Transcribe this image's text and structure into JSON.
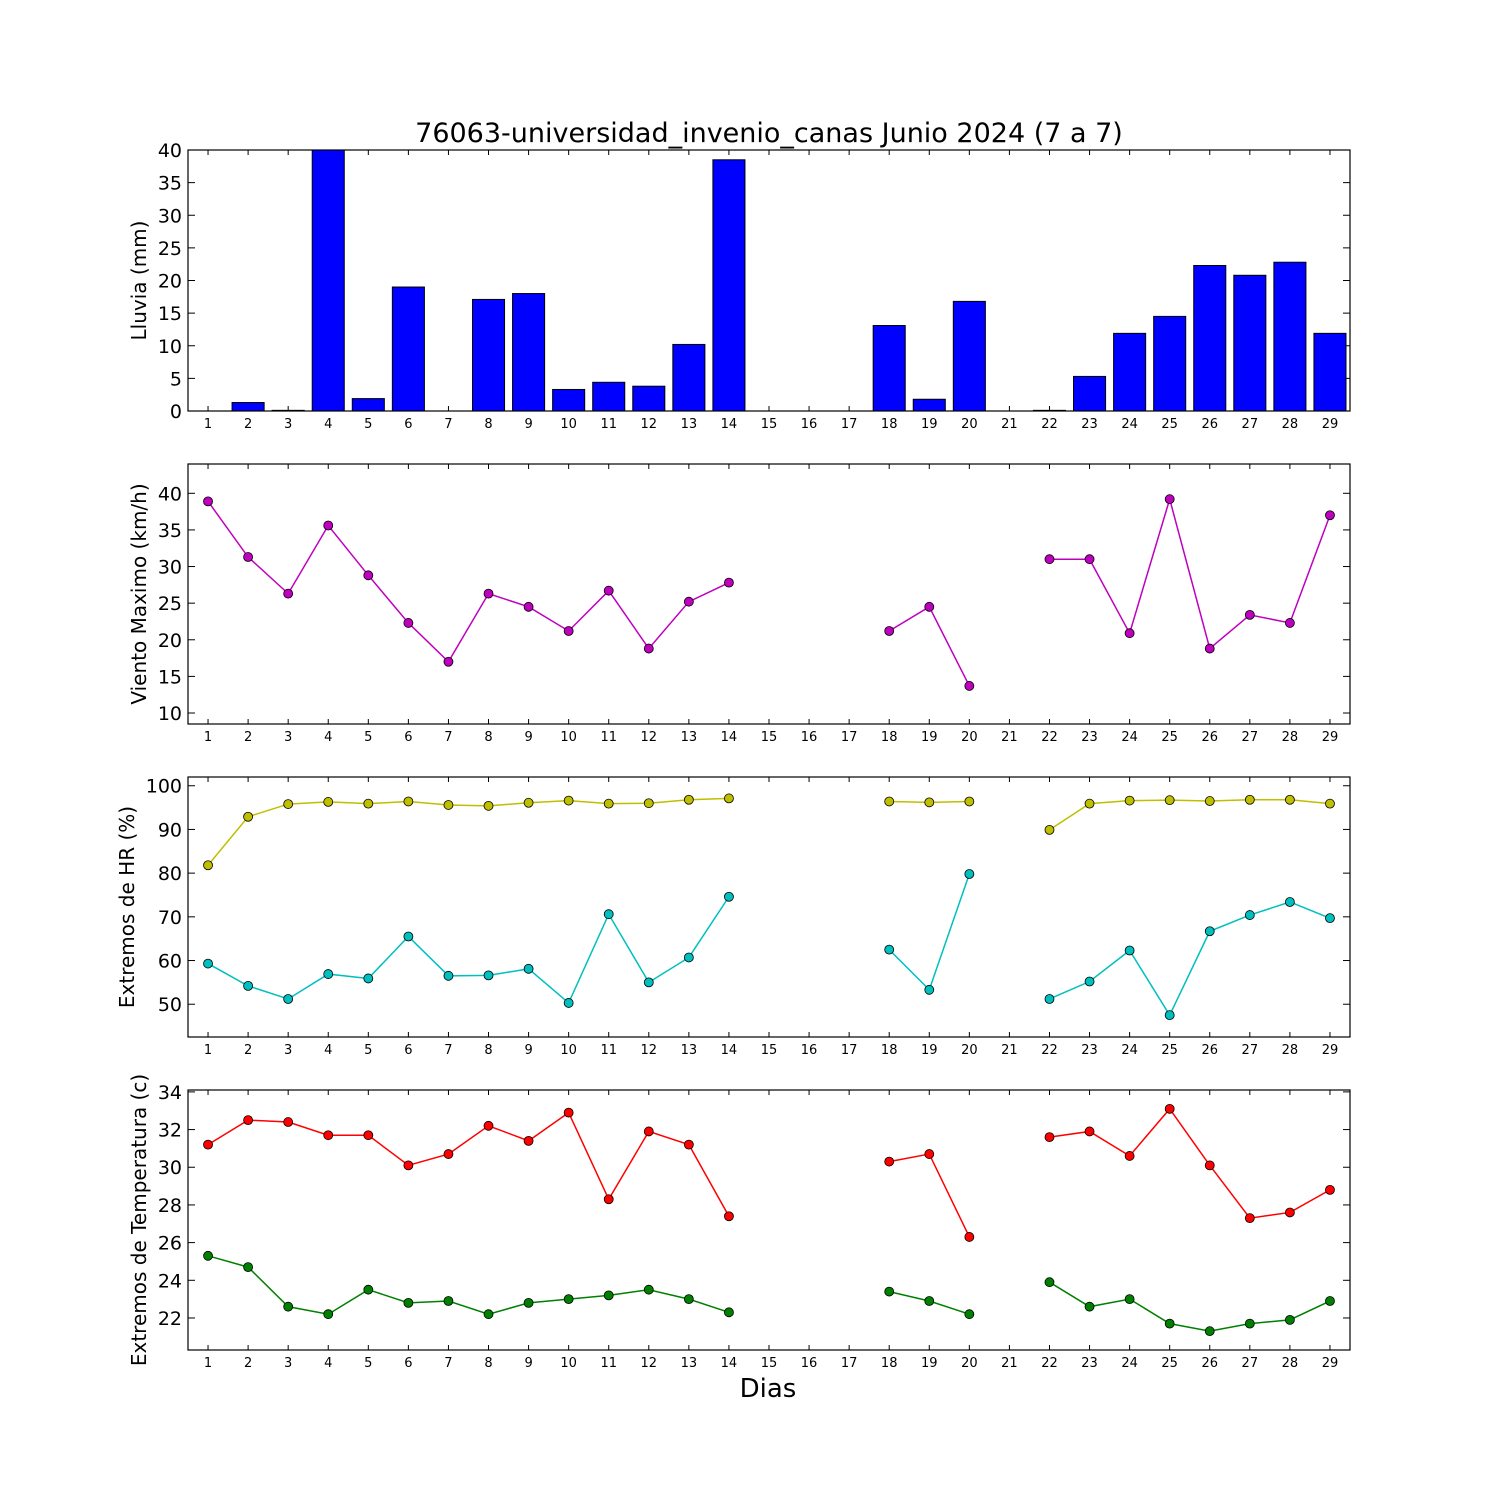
{
  "figure_title": "76063-universidad_invenio_canas Junio 2024  (7 a 7)",
  "xlabel": "Dias",
  "colors": {
    "rain_bar": "#0000ff",
    "wind": "#bf00bf",
    "hr_max": "#bfbf00",
    "hr_min": "#00bfbf",
    "temp_max": "#ff0000",
    "temp_min": "#008000"
  },
  "chart_data": [
    {
      "type": "bar",
      "ylabel": "Lluvia (mm)",
      "xlabel": "",
      "ylim": [
        0,
        40
      ],
      "yticks": [
        0,
        5,
        10,
        15,
        20,
        25,
        30,
        35,
        40
      ],
      "xlim": [
        0.5,
        29.5
      ],
      "x": [
        1,
        2,
        3,
        4,
        5,
        6,
        7,
        8,
        9,
        10,
        11,
        12,
        13,
        14,
        15,
        16,
        17,
        18,
        19,
        20,
        21,
        22,
        23,
        24,
        25,
        26,
        27,
        28,
        29
      ],
      "series": [
        {
          "values": [
            0,
            1.3,
            0.1,
            40,
            1.9,
            19,
            0,
            17.1,
            18,
            3.3,
            4.4,
            3.8,
            10.2,
            38.5,
            0,
            0,
            0,
            13.1,
            1.8,
            16.8,
            0,
            0.1,
            5.3,
            11.9,
            14.5,
            22.3,
            20.8,
            22.8,
            11.9
          ]
        }
      ]
    },
    {
      "type": "line",
      "ylabel": "Viento Maximo (km/h)",
      "xlabel": "",
      "ylim": [
        8.5,
        44
      ],
      "yticks": [
        10,
        15,
        20,
        25,
        30,
        35,
        40
      ],
      "xlim": [
        0.5,
        29.5
      ],
      "x": [
        1,
        2,
        3,
        4,
        5,
        6,
        7,
        8,
        9,
        10,
        11,
        12,
        13,
        14,
        15,
        16,
        17,
        18,
        19,
        20,
        21,
        22,
        23,
        24,
        25,
        26,
        27,
        28,
        29
      ],
      "series": [
        {
          "values": [
            38.9,
            31.3,
            26.3,
            35.6,
            28.8,
            22.3,
            17,
            26.3,
            24.5,
            21.2,
            26.7,
            18.8,
            25.2,
            27.8,
            null,
            null,
            null,
            21.2,
            24.5,
            13.7,
            null,
            31,
            31,
            20.9,
            39.2,
            18.8,
            23.4,
            22.3,
            37
          ]
        }
      ]
    },
    {
      "type": "line",
      "ylabel": "Extremos de HR (%)",
      "xlabel": "",
      "ylim": [
        42.5,
        102
      ],
      "yticks": [
        50,
        60,
        70,
        80,
        90,
        100
      ],
      "xlim": [
        0.5,
        29.5
      ],
      "x": [
        1,
        2,
        3,
        4,
        5,
        6,
        7,
        8,
        9,
        10,
        11,
        12,
        13,
        14,
        15,
        16,
        17,
        18,
        19,
        20,
        21,
        22,
        23,
        24,
        25,
        26,
        27,
        28,
        29
      ],
      "series": [
        {
          "values": [
            81.8,
            92.9,
            95.8,
            96.3,
            95.9,
            96.4,
            95.6,
            95.4,
            96.1,
            96.6,
            95.9,
            96,
            96.8,
            97.1,
            null,
            null,
            null,
            96.4,
            96.2,
            96.4,
            null,
            89.9,
            95.9,
            96.6,
            96.7,
            96.5,
            96.8,
            96.8,
            95.9
          ]
        },
        {
          "values": [
            59.3,
            54.2,
            51.2,
            56.9,
            55.9,
            65.5,
            56.5,
            56.6,
            58.1,
            50.3,
            70.6,
            55,
            60.7,
            74.6,
            null,
            null,
            null,
            62.5,
            53.3,
            79.8,
            null,
            51.2,
            55.2,
            62.3,
            47.5,
            66.7,
            70.4,
            73.4,
            69.7
          ]
        }
      ]
    },
    {
      "type": "line",
      "ylabel": "Extremos de Temperatura (c)",
      "xlabel": "Dias",
      "ylim": [
        20.3,
        34.1
      ],
      "yticks": [
        22,
        24,
        26,
        28,
        30,
        32,
        34
      ],
      "xlim": [
        0.5,
        29.5
      ],
      "x": [
        1,
        2,
        3,
        4,
        5,
        6,
        7,
        8,
        9,
        10,
        11,
        12,
        13,
        14,
        15,
        16,
        17,
        18,
        19,
        20,
        21,
        22,
        23,
        24,
        25,
        26,
        27,
        28,
        29
      ],
      "series": [
        {
          "values": [
            31.2,
            32.5,
            32.4,
            31.7,
            31.7,
            30.1,
            30.7,
            32.2,
            31.4,
            32.9,
            28.3,
            31.9,
            31.2,
            27.4,
            null,
            null,
            null,
            30.3,
            30.7,
            26.3,
            null,
            31.6,
            31.9,
            30.6,
            33.1,
            30.1,
            27.3,
            27.6,
            28.8
          ]
        },
        {
          "values": [
            25.3,
            24.7,
            22.6,
            22.2,
            23.5,
            22.8,
            22.9,
            22.2,
            22.8,
            23,
            23.2,
            23.5,
            23,
            22.3,
            null,
            null,
            null,
            23.4,
            22.9,
            22.2,
            null,
            23.9,
            22.6,
            23,
            21.7,
            21.3,
            21.7,
            21.9,
            22.9
          ]
        }
      ]
    }
  ]
}
